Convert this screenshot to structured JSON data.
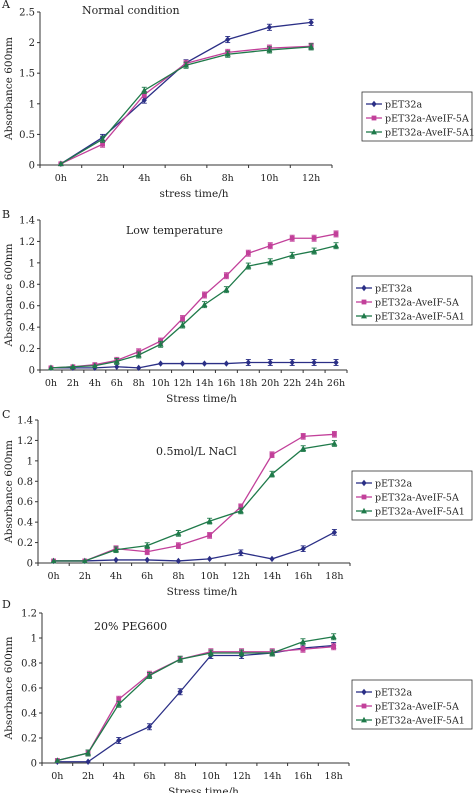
{
  "series_colors": {
    "pET32a": "#2b2f86",
    "AveIF5A": "#c2409a",
    "AveIF5A1": "#1f7a4a"
  },
  "chart_data": [
    {
      "panel": "A",
      "type": "line",
      "title": "Normal condition",
      "xlabel": "stress time/h",
      "ylabel": "Absorbance 600nm",
      "categories": [
        "0h",
        "2h",
        "4h",
        "6h",
        "8h",
        "10h",
        "12h"
      ],
      "ylim": [
        0,
        2.5
      ],
      "yticks": [
        "0",
        "0.5",
        "1",
        "1.5",
        "2",
        "2.5"
      ],
      "legend": [
        "pET32a",
        "pET32a-AveIF-5A",
        "pET32a-AveIF-5A1"
      ],
      "series": [
        {
          "name": "pET32a",
          "values": [
            0.02,
            0.45,
            1.06,
            1.67,
            2.05,
            2.25,
            2.33
          ]
        },
        {
          "name": "pET32a-AveIF-5A",
          "values": [
            0.02,
            0.34,
            1.15,
            1.66,
            1.84,
            1.91,
            1.94
          ]
        },
        {
          "name": "pET32a-AveIF-5A1",
          "values": [
            0.02,
            0.42,
            1.22,
            1.63,
            1.81,
            1.88,
            1.93
          ]
        }
      ]
    },
    {
      "panel": "B",
      "type": "line",
      "title": "Low temperature",
      "xlabel": "Stress time/h",
      "ylabel": "Absorbance 600nm",
      "categories": [
        "0h",
        "2h",
        "4h",
        "6h",
        "8h",
        "10h",
        "12h",
        "14h",
        "16h",
        "18h",
        "20h",
        "22h",
        "24h",
        "26h"
      ],
      "ylim": [
        0,
        1.4
      ],
      "yticks": [
        "0",
        "0.2",
        "0.4",
        "0.6",
        "0.8",
        "1",
        "1.2",
        "1.4"
      ],
      "legend": [
        "pET32a",
        "pET32a-AveIF-5A",
        "pET32a-AveIF-5A1"
      ],
      "series": [
        {
          "name": "pET32a",
          "values": [
            0.02,
            0.02,
            0.02,
            0.03,
            0.02,
            0.06,
            0.06,
            0.06,
            0.06,
            0.07,
            0.07,
            0.07,
            0.07,
            0.07
          ]
        },
        {
          "name": "pET32a-AveIF-5A",
          "values": [
            0.02,
            0.03,
            0.05,
            0.09,
            0.17,
            0.27,
            0.48,
            0.7,
            0.88,
            1.09,
            1.16,
            1.23,
            1.23,
            1.27
          ]
        },
        {
          "name": "pET32a-AveIF-5A1",
          "values": [
            0.02,
            0.03,
            0.04,
            0.08,
            0.14,
            0.24,
            0.42,
            0.61,
            0.75,
            0.97,
            1.01,
            1.07,
            1.11,
            1.16
          ]
        }
      ]
    },
    {
      "panel": "C",
      "type": "line",
      "title": "0.5mol/L NaCl",
      "xlabel": "Stress time/h",
      "ylabel": "Absorbance 600nm",
      "categories": [
        "0h",
        "2h",
        "4h",
        "6h",
        "8h",
        "10h",
        "12h",
        "14h",
        "16h",
        "18h"
      ],
      "ylim": [
        0,
        1.4
      ],
      "yticks": [
        "0",
        "0.2",
        "0.4",
        "0.6",
        "0.8",
        "1",
        "1.2",
        "1.4"
      ],
      "legend": [
        "pET32a",
        "pET32a-AveIF-5A",
        "pET32a-AveIF-5A1"
      ],
      "series": [
        {
          "name": "pET32a",
          "values": [
            0.02,
            0.02,
            0.03,
            0.03,
            0.02,
            0.04,
            0.1,
            0.04,
            0.14,
            0.3
          ]
        },
        {
          "name": "pET32a-AveIF-5A",
          "values": [
            0.02,
            0.02,
            0.14,
            0.11,
            0.17,
            0.27,
            0.55,
            1.06,
            1.24,
            1.26
          ]
        },
        {
          "name": "pET32a-AveIF-5A1",
          "values": [
            0.02,
            0.02,
            0.13,
            0.17,
            0.29,
            0.41,
            0.51,
            0.87,
            1.12,
            1.17
          ]
        }
      ]
    },
    {
      "panel": "D",
      "type": "line",
      "title": "20% PEG600",
      "xlabel": "Stress time/h",
      "ylabel": "Absorbance 600nm",
      "categories": [
        "0h",
        "2h",
        "4h",
        "6h",
        "8h",
        "10h",
        "12h",
        "14h",
        "16h",
        "18h"
      ],
      "ylim": [
        0,
        1.2
      ],
      "yticks": [
        "0",
        "0.2",
        "0.4",
        "0.6",
        "0.8",
        "1",
        "1.2"
      ],
      "legend": [
        "pET32a",
        "pET32a-AveIF-5A",
        "pET32a-AveIF-5A1"
      ],
      "series": [
        {
          "name": "pET32a",
          "values": [
            0.01,
            0.01,
            0.18,
            0.29,
            0.57,
            0.86,
            0.86,
            0.88,
            0.92,
            0.94
          ]
        },
        {
          "name": "pET32a-AveIF-5A",
          "values": [
            0.02,
            0.08,
            0.51,
            0.71,
            0.83,
            0.89,
            0.89,
            0.89,
            0.91,
            0.93
          ]
        },
        {
          "name": "pET32a-AveIF-5A1",
          "values": [
            0.02,
            0.08,
            0.47,
            0.7,
            0.83,
            0.88,
            0.88,
            0.88,
            0.97,
            1.01
          ]
        }
      ]
    }
  ]
}
